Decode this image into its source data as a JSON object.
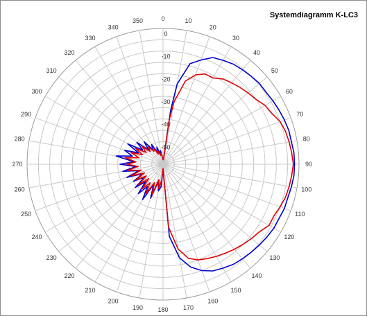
{
  "chart_data": {
    "type": "polar-line",
    "title": "Systemdiagramm K-LC3",
    "angular_ticks": [
      "0",
      "10",
      "20",
      "30",
      "40",
      "50",
      "60",
      "70",
      "80",
      "90",
      "100",
      "110",
      "120",
      "130",
      "140",
      "150",
      "160",
      "170",
      "180",
      "190",
      "200",
      "210",
      "220",
      "230",
      "240",
      "250",
      "260",
      "270",
      "280",
      "290",
      "300",
      "310",
      "320",
      "330",
      "340",
      "350"
    ],
    "radial_ticks": [
      "0",
      "-10",
      "-20",
      "-30",
      "-40",
      "-50"
    ],
    "radial_range": [
      -60,
      0
    ],
    "grid": true,
    "series": [
      {
        "color": "#0000cc",
        "points": [
          [
            0,
            -58
          ],
          [
            5,
            -58
          ],
          [
            8,
            -36
          ],
          [
            10,
            -24
          ],
          [
            15,
            -14
          ],
          [
            20,
            -11
          ],
          [
            25,
            -8
          ],
          [
            30,
            -7
          ],
          [
            35,
            -6
          ],
          [
            40,
            -5.5
          ],
          [
            45,
            -5
          ],
          [
            50,
            -4.5
          ],
          [
            55,
            -4.5
          ],
          [
            60,
            -4
          ],
          [
            65,
            -3.5
          ],
          [
            70,
            -3
          ],
          [
            75,
            -2.5
          ],
          [
            80,
            -2.5
          ],
          [
            85,
            -2
          ],
          [
            90,
            -2
          ],
          [
            95,
            -2
          ],
          [
            100,
            -2.5
          ],
          [
            105,
            -3
          ],
          [
            110,
            -3
          ],
          [
            115,
            -3.5
          ],
          [
            120,
            -3.5
          ],
          [
            125,
            -4
          ],
          [
            130,
            -4.5
          ],
          [
            135,
            -5
          ],
          [
            140,
            -5.5
          ],
          [
            145,
            -6
          ],
          [
            150,
            -7
          ],
          [
            155,
            -8
          ],
          [
            160,
            -10
          ],
          [
            165,
            -13
          ],
          [
            170,
            -18
          ],
          [
            175,
            -28
          ],
          [
            180,
            -58
          ],
          [
            185,
            -50
          ],
          [
            190,
            -48
          ],
          [
            195,
            -52
          ],
          [
            200,
            -44
          ],
          [
            205,
            -50
          ],
          [
            210,
            -42
          ],
          [
            215,
            -48
          ],
          [
            220,
            -43
          ],
          [
            225,
            -49
          ],
          [
            230,
            -44
          ],
          [
            235,
            -50
          ],
          [
            240,
            -45
          ],
          [
            245,
            -50
          ],
          [
            250,
            -43
          ],
          [
            255,
            -49
          ],
          [
            260,
            -42
          ],
          [
            265,
            -48
          ],
          [
            270,
            -41
          ],
          [
            275,
            -47
          ],
          [
            280,
            -39
          ],
          [
            285,
            -46
          ],
          [
            290,
            -42
          ],
          [
            295,
            -48
          ],
          [
            300,
            -42
          ],
          [
            305,
            -49
          ],
          [
            310,
            -45
          ],
          [
            315,
            -51
          ],
          [
            320,
            -47
          ],
          [
            325,
            -52
          ],
          [
            330,
            -50
          ],
          [
            335,
            -54
          ],
          [
            340,
            -52
          ],
          [
            345,
            -55
          ],
          [
            350,
            -54
          ],
          [
            355,
            -57
          ],
          [
            360,
            -58
          ]
        ]
      },
      {
        "color": "#e00000",
        "points": [
          [
            0,
            -58
          ],
          [
            5,
            -58
          ],
          [
            8,
            -40
          ],
          [
            10,
            -32
          ],
          [
            15,
            -22
          ],
          [
            20,
            -18
          ],
          [
            25,
            -16
          ],
          [
            30,
            -16
          ],
          [
            35,
            -14
          ],
          [
            40,
            -13
          ],
          [
            45,
            -12
          ],
          [
            50,
            -11
          ],
          [
            55,
            -10
          ],
          [
            60,
            -8
          ],
          [
            65,
            -7
          ],
          [
            70,
            -5
          ],
          [
            75,
            -4
          ],
          [
            80,
            -3.5
          ],
          [
            85,
            -3
          ],
          [
            90,
            -2.5
          ],
          [
            95,
            -3
          ],
          [
            100,
            -3.5
          ],
          [
            105,
            -4
          ],
          [
            110,
            -5
          ],
          [
            115,
            -6
          ],
          [
            120,
            -6
          ],
          [
            125,
            -8
          ],
          [
            130,
            -9
          ],
          [
            135,
            -10
          ],
          [
            140,
            -11
          ],
          [
            145,
            -12
          ],
          [
            150,
            -13
          ],
          [
            155,
            -14
          ],
          [
            160,
            -15
          ],
          [
            165,
            -17
          ],
          [
            170,
            -22
          ],
          [
            175,
            -32
          ],
          [
            180,
            -58
          ],
          [
            185,
            -53
          ],
          [
            190,
            -49
          ],
          [
            195,
            -53
          ],
          [
            200,
            -46
          ],
          [
            205,
            -51
          ],
          [
            210,
            -45
          ],
          [
            215,
            -50
          ],
          [
            220,
            -46
          ],
          [
            225,
            -51
          ],
          [
            230,
            -46
          ],
          [
            235,
            -51
          ],
          [
            240,
            -46
          ],
          [
            245,
            -51
          ],
          [
            250,
            -45
          ],
          [
            255,
            -50
          ],
          [
            260,
            -44
          ],
          [
            265,
            -49
          ],
          [
            270,
            -44
          ],
          [
            275,
            -48
          ],
          [
            280,
            -43
          ],
          [
            285,
            -49
          ],
          [
            290,
            -45
          ],
          [
            295,
            -50
          ],
          [
            300,
            -46
          ],
          [
            305,
            -51
          ],
          [
            310,
            -48
          ],
          [
            315,
            -52
          ],
          [
            320,
            -50
          ],
          [
            325,
            -53
          ],
          [
            330,
            -52
          ],
          [
            335,
            -55
          ],
          [
            340,
            -54
          ],
          [
            345,
            -56
          ],
          [
            350,
            -55
          ],
          [
            355,
            -57
          ],
          [
            360,
            -58
          ]
        ]
      }
    ]
  }
}
